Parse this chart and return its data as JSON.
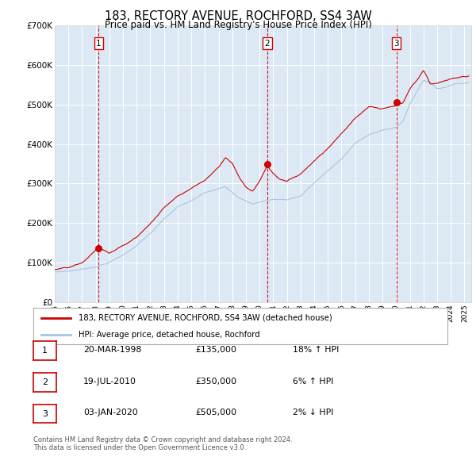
{
  "title": "183, RECTORY AVENUE, ROCHFORD, SS4 3AW",
  "subtitle": "Price paid vs. HM Land Registry's House Price Index (HPI)",
  "ylim": [
    0,
    700000
  ],
  "yticks": [
    0,
    100000,
    200000,
    300000,
    400000,
    500000,
    600000,
    700000
  ],
  "ytick_labels": [
    "£0",
    "£100K",
    "£200K",
    "£300K",
    "£400K",
    "£500K",
    "£600K",
    "£700K"
  ],
  "bg_color": "#dce9f5",
  "hpi_color": "#a8c4e0",
  "price_color": "#cc0000",
  "sale_dates": [
    1998.22,
    2010.55,
    2020.01
  ],
  "sale_prices": [
    135000,
    350000,
    505000
  ],
  "sale_labels": [
    "1",
    "2",
    "3"
  ],
  "legend_price_label": "183, RECTORY AVENUE, ROCHFORD, SS4 3AW (detached house)",
  "legend_hpi_label": "HPI: Average price, detached house, Rochford",
  "table": [
    {
      "num": "1",
      "date": "20-MAR-1998",
      "price": "£135,000",
      "hpi": "18% ↑ HPI"
    },
    {
      "num": "2",
      "date": "19-JUL-2010",
      "price": "£350,000",
      "hpi": "6% ↑ HPI"
    },
    {
      "num": "3",
      "date": "03-JAN-2020",
      "price": "£505,000",
      "hpi": "2% ↓ HPI"
    }
  ],
  "footnote1": "Contains HM Land Registry data © Crown copyright and database right 2024.",
  "footnote2": "This data is licensed under the Open Government Licence v3.0.",
  "xmin": 1995.0,
  "xmax": 2025.5
}
